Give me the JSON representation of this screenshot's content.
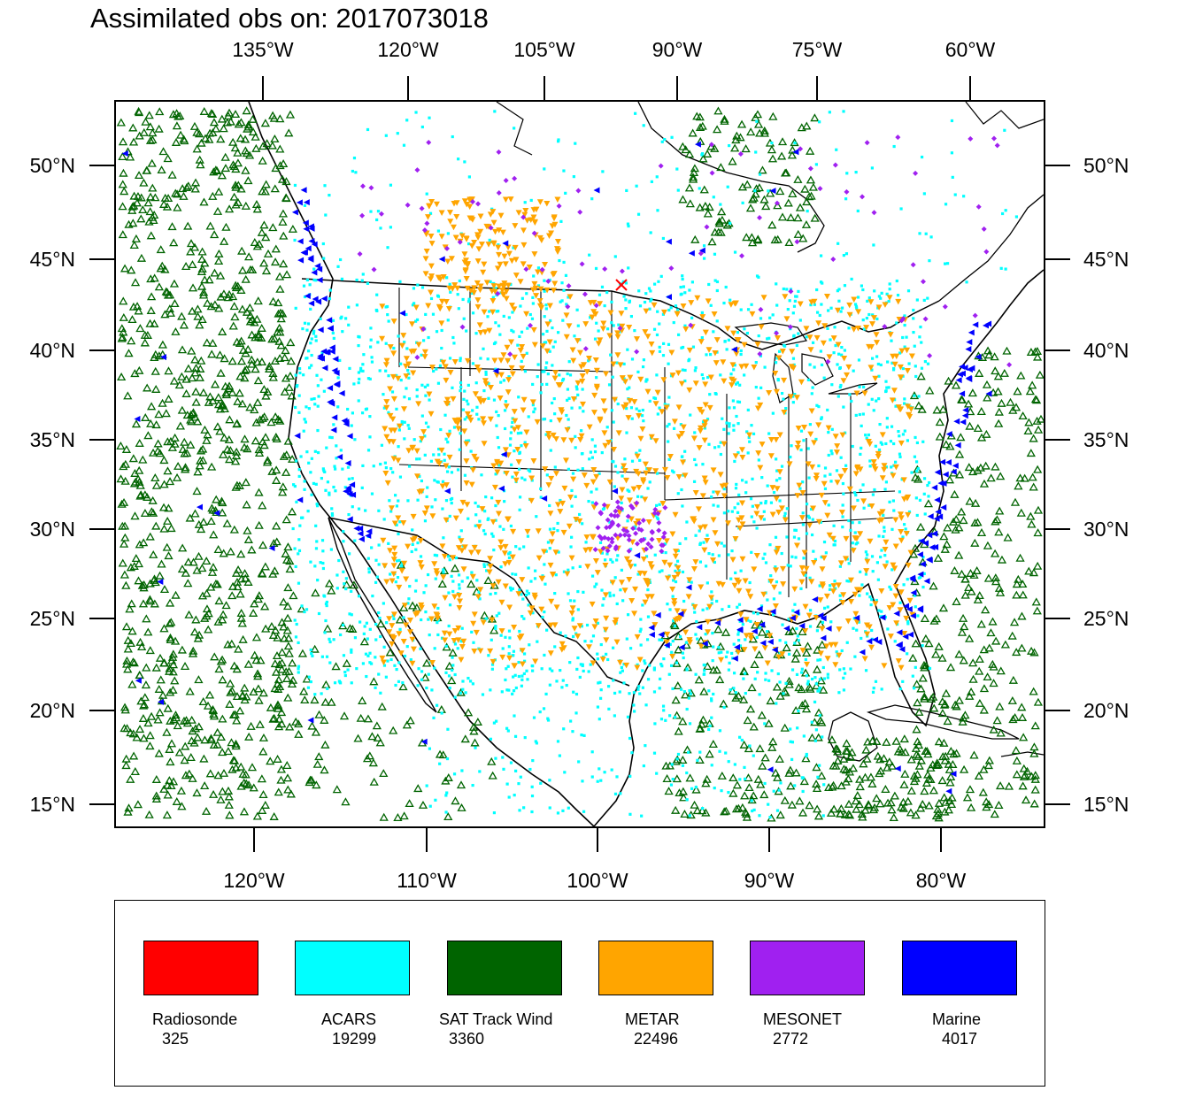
{
  "title": "Assimilated obs on: 2017073018",
  "top_lon_labels": [
    "135°W",
    "120°W",
    "105°W",
    "90°W",
    "75°W",
    "60°W"
  ],
  "bottom_lon_labels": [
    "120°W",
    "110°W",
    "100°W",
    "90°W",
    "80°W"
  ],
  "lat_labels": [
    "50°N",
    "45°N",
    "40°N",
    "35°N",
    "30°N",
    "25°N",
    "20°N",
    "15°N"
  ],
  "legend": [
    {
      "name": "Radiosonde",
      "count": "325",
      "color": "#ff0000"
    },
    {
      "name": "ACARS",
      "count": "19299",
      "color": "#00ffff"
    },
    {
      "name": "SAT Track Wind",
      "count": "3360",
      "color": "#006400"
    },
    {
      "name": "METAR",
      "count": "22496",
      "color": "#ffa500"
    },
    {
      "name": "MESONET",
      "count": "2772",
      "color": "#a020f0"
    },
    {
      "name": "Marine",
      "count": "4017",
      "color": "#0000ff"
    }
  ],
  "markers": {
    "Radiosonde": "x-cross",
    "ACARS": "square",
    "SAT Track Wind": "open-triangle",
    "METAR": "down-triangle",
    "MESONET": "diamond",
    "Marine": "left-triangle"
  }
}
